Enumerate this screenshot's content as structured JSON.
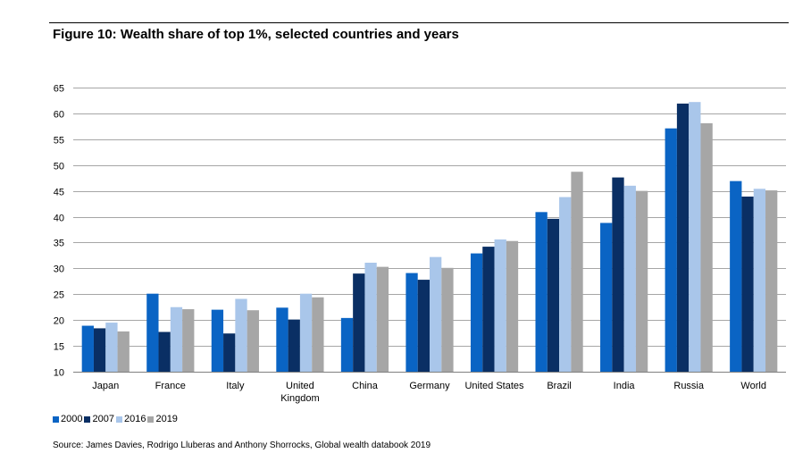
{
  "title": "Figure 10: Wealth share of top 1%, selected countries and years",
  "source": "Source: James Davies, Rodrigo Lluberas and Anthony Shorrocks, Global wealth databook 2019",
  "colors": {
    "2000": "#0a64c4",
    "2007": "#0a2f64",
    "2016": "#a9c6ea",
    "2019": "#a6a6a6",
    "grid": "#a6a6a6",
    "axis": "#808080"
  },
  "chart_data": {
    "type": "bar",
    "title": "Figure 10: Wealth share of top 1%, selected countries and years",
    "xlabel": "",
    "ylabel": "",
    "ylim": [
      10,
      65
    ],
    "yticks": [
      10,
      15,
      20,
      25,
      30,
      35,
      40,
      45,
      50,
      55,
      60,
      65
    ],
    "grid": true,
    "legend_position": "bottom-left",
    "categories": [
      [
        "Japan"
      ],
      [
        "France"
      ],
      [
        "Italy"
      ],
      [
        "United",
        "Kingdom"
      ],
      [
        "China"
      ],
      [
        "Germany"
      ],
      [
        "United States"
      ],
      [
        "Brazil"
      ],
      [
        "India"
      ],
      [
        "Russia"
      ],
      [
        "World"
      ]
    ],
    "series": [
      {
        "name": "2000",
        "color": "#0a64c4",
        "values": [
          18.9,
          25.1,
          22.0,
          22.4,
          20.4,
          29.1,
          32.9,
          40.9,
          38.8,
          57.1,
          46.9
        ]
      },
      {
        "name": "2007",
        "color": "#0a2f64",
        "values": [
          18.4,
          17.7,
          17.4,
          20.1,
          29.0,
          27.8,
          34.2,
          39.6,
          47.6,
          61.9,
          43.9
        ]
      },
      {
        "name": "2016",
        "color": "#a9c6ea",
        "values": [
          19.5,
          22.5,
          24.1,
          25.1,
          31.1,
          32.2,
          35.6,
          43.8,
          46.0,
          62.2,
          45.4
        ]
      },
      {
        "name": "2019",
        "color": "#a6a6a6",
        "values": [
          17.8,
          22.1,
          21.9,
          24.4,
          30.3,
          30.1,
          35.3,
          48.7,
          45.0,
          58.1,
          45.1
        ]
      }
    ]
  }
}
